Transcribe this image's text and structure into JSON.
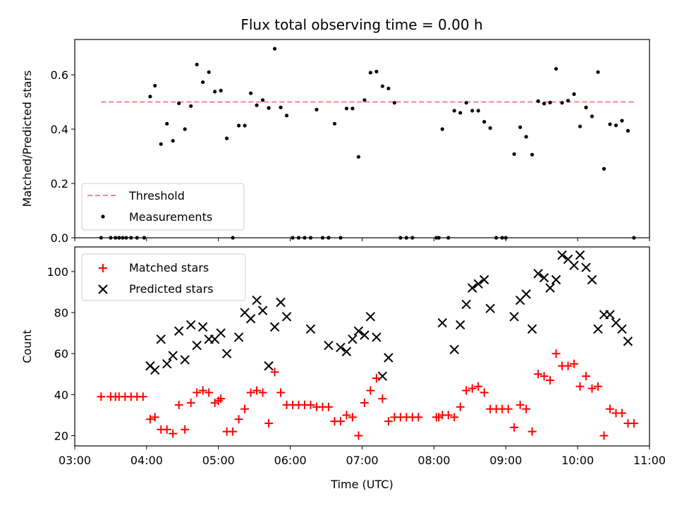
{
  "title": "Flux total observing time = 0.00 h",
  "chart_data": [
    {
      "type": "scatter",
      "ylabel": "Matched/Predicted stars",
      "xlim": [
        "03:00",
        "11:00"
      ],
      "ylim": [
        0,
        0.73
      ],
      "yticks": [
        "0.0",
        "0.2",
        "0.4",
        "0.6"
      ],
      "legend_position": "lower-left",
      "threshold": {
        "name": "Threshold",
        "value": 0.5,
        "x": [
          "03:22",
          "10:47"
        ],
        "color": "#ff7f7f"
      },
      "series": [
        {
          "name": "Measurements",
          "color": "#000000",
          "points": [
            [
              "03:22",
              0.0
            ],
            [
              "03:30",
              0.0
            ],
            [
              "03:34",
              0.0
            ],
            [
              "03:37",
              0.0
            ],
            [
              "03:40",
              0.0
            ],
            [
              "03:43",
              0.0
            ],
            [
              "03:47",
              0.0
            ],
            [
              "03:52",
              0.0
            ],
            [
              "03:58",
              0.0
            ],
            [
              "04:03",
              0.52
            ],
            [
              "04:07",
              0.56
            ],
            [
              "04:12",
              0.345
            ],
            [
              "04:17",
              0.42
            ],
            [
              "04:22",
              0.357
            ],
            [
              "04:27",
              0.495
            ],
            [
              "04:32",
              0.4
            ],
            [
              "04:37",
              0.485
            ],
            [
              "04:42",
              0.638
            ],
            [
              "04:47",
              0.573
            ],
            [
              "04:52",
              0.61
            ],
            [
              "04:57",
              0.538
            ],
            [
              "05:02",
              0.542
            ],
            [
              "05:07",
              0.366
            ],
            [
              "05:12",
              0.0
            ],
            [
              "05:17",
              0.413
            ],
            [
              "05:22",
              0.413
            ],
            [
              "05:27",
              0.532
            ],
            [
              "05:32",
              0.488
            ],
            [
              "05:37",
              0.507
            ],
            [
              "05:42",
              0.478
            ],
            [
              "05:47",
              0.696
            ],
            [
              "05:52",
              0.48
            ],
            [
              "05:57",
              0.45
            ],
            [
              "06:02",
              0.0
            ],
            [
              "06:07",
              0.0
            ],
            [
              "06:12",
              0.0
            ],
            [
              "06:17",
              0.0
            ],
            [
              "06:22",
              0.472
            ],
            [
              "06:27",
              0.0
            ],
            [
              "06:32",
              0.0
            ],
            [
              "06:37",
              0.42
            ],
            [
              "06:42",
              0.0
            ],
            [
              "06:47",
              0.476
            ],
            [
              "06:52",
              0.476
            ],
            [
              "06:57",
              0.298
            ],
            [
              "07:02",
              0.507
            ],
            [
              "07:07",
              0.608
            ],
            [
              "07:12",
              0.612
            ],
            [
              "07:17",
              0.558
            ],
            [
              "07:22",
              0.55
            ],
            [
              "07:27",
              0.497
            ],
            [
              "07:32",
              0.0
            ],
            [
              "07:37",
              0.0
            ],
            [
              "07:42",
              0.0
            ],
            [
              "08:02",
              0.0
            ],
            [
              "08:04",
              0.0
            ],
            [
              "08:07",
              0.4
            ],
            [
              "08:12",
              0.0
            ],
            [
              "08:17",
              0.468
            ],
            [
              "08:22",
              0.46
            ],
            [
              "08:27",
              0.497
            ],
            [
              "08:32",
              0.468
            ],
            [
              "08:37",
              0.468
            ],
            [
              "08:42",
              0.427
            ],
            [
              "08:47",
              0.404
            ],
            [
              "08:52",
              0.0
            ],
            [
              "08:57",
              0.0
            ],
            [
              "09:00",
              0.0
            ],
            [
              "09:07",
              0.308
            ],
            [
              "09:12",
              0.407
            ],
            [
              "09:17",
              0.372
            ],
            [
              "09:22",
              0.306
            ],
            [
              "09:27",
              0.503
            ],
            [
              "09:32",
              0.494
            ],
            [
              "09:37",
              0.498
            ],
            [
              "09:42",
              0.622
            ],
            [
              "09:47",
              0.497
            ],
            [
              "09:52",
              0.505
            ],
            [
              "09:57",
              0.529
            ],
            [
              "10:02",
              0.41
            ],
            [
              "10:07",
              0.48
            ],
            [
              "10:12",
              0.447
            ],
            [
              "10:17",
              0.61
            ],
            [
              "10:22",
              0.254
            ],
            [
              "10:27",
              0.418
            ],
            [
              "10:32",
              0.414
            ],
            [
              "10:37",
              0.431
            ],
            [
              "10:42",
              0.394
            ],
            [
              "10:47",
              0.0
            ]
          ]
        }
      ]
    },
    {
      "type": "scatter",
      "xlabel": "Time (UTC)",
      "ylabel": "Count",
      "xlim": [
        "03:00",
        "11:00"
      ],
      "ylim": [
        15,
        112
      ],
      "xticks": [
        "03:00",
        "04:00",
        "05:00",
        "06:00",
        "07:00",
        "08:00",
        "09:00",
        "10:00",
        "11:00"
      ],
      "yticks": [
        "20",
        "40",
        "60",
        "80",
        "100"
      ],
      "legend_position": "upper-left",
      "series": [
        {
          "name": "Matched stars",
          "marker": "+",
          "color": "#ff0000",
          "points": [
            [
              "03:22",
              39
            ],
            [
              "03:30",
              39
            ],
            [
              "03:34",
              39
            ],
            [
              "03:37",
              39
            ],
            [
              "03:42",
              39
            ],
            [
              "03:47",
              39
            ],
            [
              "03:52",
              39
            ],
            [
              "03:57",
              39
            ],
            [
              "04:03",
              28
            ],
            [
              "04:07",
              29
            ],
            [
              "04:12",
              23
            ],
            [
              "04:17",
              23
            ],
            [
              "04:22",
              21
            ],
            [
              "04:27",
              35
            ],
            [
              "04:32",
              23
            ],
            [
              "04:37",
              36
            ],
            [
              "04:42",
              41
            ],
            [
              "04:47",
              42
            ],
            [
              "04:52",
              41
            ],
            [
              "04:57",
              36
            ],
            [
              "05:00",
              37
            ],
            [
              "05:02",
              38
            ],
            [
              "05:07",
              22
            ],
            [
              "05:12",
              22
            ],
            [
              "05:17",
              28
            ],
            [
              "05:22",
              33
            ],
            [
              "05:27",
              41
            ],
            [
              "05:32",
              42
            ],
            [
              "05:37",
              41
            ],
            [
              "05:42",
              26
            ],
            [
              "05:47",
              51
            ],
            [
              "05:52",
              41
            ],
            [
              "05:57",
              35
            ],
            [
              "06:02",
              35
            ],
            [
              "06:07",
              35
            ],
            [
              "06:12",
              35
            ],
            [
              "06:17",
              35
            ],
            [
              "06:22",
              34
            ],
            [
              "06:27",
              34
            ],
            [
              "06:32",
              34
            ],
            [
              "06:37",
              27
            ],
            [
              "06:42",
              27
            ],
            [
              "06:47",
              30
            ],
            [
              "06:52",
              29
            ],
            [
              "06:57",
              20
            ],
            [
              "07:02",
              36
            ],
            [
              "07:07",
              42
            ],
            [
              "07:12",
              48
            ],
            [
              "07:17",
              38
            ],
            [
              "07:22",
              27
            ],
            [
              "07:27",
              29
            ],
            [
              "07:32",
              29
            ],
            [
              "07:37",
              29
            ],
            [
              "07:42",
              29
            ],
            [
              "07:47",
              29
            ],
            [
              "08:02",
              29
            ],
            [
              "08:04",
              29
            ],
            [
              "08:07",
              30
            ],
            [
              "08:12",
              30
            ],
            [
              "08:17",
              29
            ],
            [
              "08:22",
              34
            ],
            [
              "08:27",
              42
            ],
            [
              "08:32",
              43
            ],
            [
              "08:37",
              44
            ],
            [
              "08:42",
              41
            ],
            [
              "08:47",
              33
            ],
            [
              "08:52",
              33
            ],
            [
              "08:57",
              33
            ],
            [
              "09:02",
              33
            ],
            [
              "09:07",
              24
            ],
            [
              "09:12",
              35
            ],
            [
              "09:17",
              33
            ],
            [
              "09:22",
              22
            ],
            [
              "09:27",
              50
            ],
            [
              "09:32",
              49
            ],
            [
              "09:37",
              47
            ],
            [
              "09:42",
              60
            ],
            [
              "09:47",
              54
            ],
            [
              "09:52",
              54
            ],
            [
              "09:57",
              55
            ],
            [
              "10:02",
              44
            ],
            [
              "10:07",
              49
            ],
            [
              "10:12",
              43
            ],
            [
              "10:17",
              44
            ],
            [
              "10:22",
              20
            ],
            [
              "10:27",
              33
            ],
            [
              "10:32",
              31
            ],
            [
              "10:37",
              31
            ],
            [
              "10:42",
              26
            ],
            [
              "10:47",
              26
            ]
          ]
        },
        {
          "name": "Predicted stars",
          "marker": "x",
          "color": "#000000",
          "points": [
            [
              "04:03",
              54
            ],
            [
              "04:07",
              52
            ],
            [
              "04:12",
              67
            ],
            [
              "04:17",
              55
            ],
            [
              "04:22",
              59
            ],
            [
              "04:27",
              71
            ],
            [
              "04:32",
              57
            ],
            [
              "04:37",
              74
            ],
            [
              "04:42",
              64
            ],
            [
              "04:47",
              73
            ],
            [
              "04:52",
              67
            ],
            [
              "04:57",
              67
            ],
            [
              "05:02",
              70
            ],
            [
              "05:07",
              60
            ],
            [
              "05:17",
              68
            ],
            [
              "05:22",
              80
            ],
            [
              "05:27",
              77
            ],
            [
              "05:32",
              86
            ],
            [
              "05:37",
              81
            ],
            [
              "05:42",
              54
            ],
            [
              "05:47",
              73
            ],
            [
              "05:52",
              85
            ],
            [
              "05:57",
              78
            ],
            [
              "06:17",
              72
            ],
            [
              "06:32",
              64
            ],
            [
              "06:42",
              63
            ],
            [
              "06:47",
              61
            ],
            [
              "06:52",
              67
            ],
            [
              "06:57",
              71
            ],
            [
              "07:02",
              69
            ],
            [
              "07:07",
              78
            ],
            [
              "07:12",
              68
            ],
            [
              "07:17",
              49
            ],
            [
              "07:22",
              58
            ],
            [
              "08:07",
              75
            ],
            [
              "08:17",
              62
            ],
            [
              "08:22",
              74
            ],
            [
              "08:27",
              84
            ],
            [
              "08:32",
              92
            ],
            [
              "08:37",
              94
            ],
            [
              "08:42",
              96
            ],
            [
              "08:47",
              82
            ],
            [
              "09:07",
              78
            ],
            [
              "09:12",
              86
            ],
            [
              "09:17",
              89
            ],
            [
              "09:22",
              72
            ],
            [
              "09:27",
              99
            ],
            [
              "09:32",
              97
            ],
            [
              "09:37",
              92
            ],
            [
              "09:42",
              96
            ],
            [
              "09:47",
              108
            ],
            [
              "09:52",
              106
            ],
            [
              "09:57",
              103
            ],
            [
              "10:02",
              108
            ],
            [
              "10:07",
              102
            ],
            [
              "10:12",
              96
            ],
            [
              "10:17",
              72
            ],
            [
              "10:22",
              79
            ],
            [
              "10:27",
              79
            ],
            [
              "10:32",
              75
            ],
            [
              "10:37",
              72
            ],
            [
              "10:42",
              66
            ]
          ]
        }
      ]
    }
  ]
}
